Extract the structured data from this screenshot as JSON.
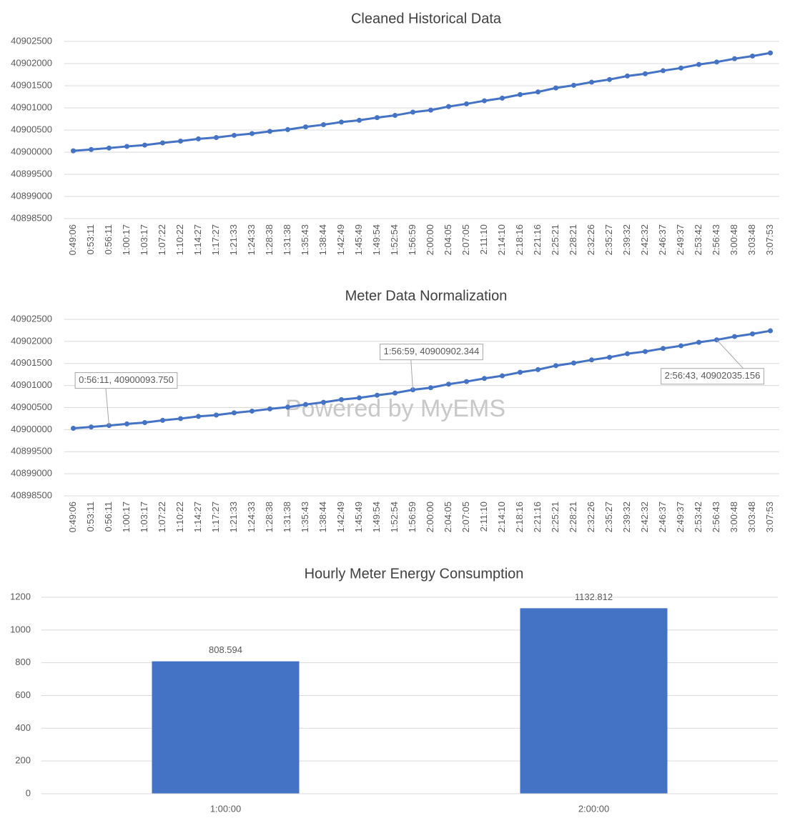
{
  "chart_data": [
    {
      "type": "line",
      "title": "Cleaned Historical Data",
      "categories": [
        "0:49:06",
        "0:53:11",
        "0:56:11",
        "1:00:17",
        "1:03:17",
        "1:07:22",
        "1:10:22",
        "1:14:27",
        "1:17:27",
        "1:21:33",
        "1:24:33",
        "1:28:38",
        "1:31:38",
        "1:35:43",
        "1:38:44",
        "1:42:49",
        "1:45:49",
        "1:49:54",
        "1:52:54",
        "1:56:59",
        "2:00:00",
        "2:04:05",
        "2:07:05",
        "2:11:10",
        "2:14:10",
        "2:18:16",
        "2:21:16",
        "2:25:21",
        "2:28:21",
        "2:32:26",
        "2:35:27",
        "2:39:32",
        "2:42:32",
        "2:46:37",
        "2:49:37",
        "2:53:42",
        "2:56:43",
        "3:00:48",
        "3:03:48",
        "3:07:53"
      ],
      "values": [
        40900030,
        40900060,
        40900093.75,
        40900130,
        40900160,
        40900210,
        40900250,
        40900300,
        40900330,
        40900380,
        40900420,
        40900470,
        40900510,
        40900570,
        40900620,
        40900680,
        40900720,
        40900780,
        40900830,
        40900902.344,
        40900950,
        40901030,
        40901090,
        40901160,
        40901220,
        40901300,
        40901360,
        40901450,
        40901510,
        40901580,
        40901640,
        40901720,
        40901770,
        40901840,
        40901900,
        40901980,
        40902035.156,
        40902110,
        40902170,
        40902240
      ],
      "color": "#4472c4",
      "ylim": [
        40898500,
        40902500
      ],
      "yticks": [
        40898500,
        40899000,
        40899500,
        40900000,
        40900500,
        40901000,
        40901500,
        40902000,
        40902500
      ],
      "grid": true
    },
    {
      "type": "line",
      "title": "Meter Data Normalization",
      "categories": [
        "0:49:06",
        "0:53:11",
        "0:56:11",
        "1:00:17",
        "1:03:17",
        "1:07:22",
        "1:10:22",
        "1:14:27",
        "1:17:27",
        "1:21:33",
        "1:24:33",
        "1:28:38",
        "1:31:38",
        "1:35:43",
        "1:38:44",
        "1:42:49",
        "1:45:49",
        "1:49:54",
        "1:52:54",
        "1:56:59",
        "2:00:00",
        "2:04:05",
        "2:07:05",
        "2:11:10",
        "2:14:10",
        "2:18:16",
        "2:21:16",
        "2:25:21",
        "2:28:21",
        "2:32:26",
        "2:35:27",
        "2:39:32",
        "2:42:32",
        "2:46:37",
        "2:49:37",
        "2:53:42",
        "2:56:43",
        "3:00:48",
        "3:03:48",
        "3:07:53"
      ],
      "values": [
        40900030,
        40900060,
        40900093.75,
        40900130,
        40900160,
        40900210,
        40900250,
        40900300,
        40900330,
        40900380,
        40900420,
        40900470,
        40900510,
        40900570,
        40900620,
        40900680,
        40900720,
        40900780,
        40900830,
        40900902.344,
        40900950,
        40901030,
        40901090,
        40901160,
        40901220,
        40901300,
        40901360,
        40901450,
        40901510,
        40901580,
        40901640,
        40901720,
        40901770,
        40901840,
        40901900,
        40901980,
        40902035.156,
        40902110,
        40902170,
        40902240
      ],
      "color": "#4472c4",
      "ylim": [
        40898500,
        40902500
      ],
      "yticks": [
        40898500,
        40899000,
        40899500,
        40900000,
        40900500,
        40901000,
        40901500,
        40902000,
        40902500
      ],
      "grid": true,
      "annotations": [
        {
          "x": "0:56:11",
          "y": 40900093.75,
          "label": "0:56:11, 40900093.750"
        },
        {
          "x": "1:56:59",
          "y": 40900902.344,
          "label": "1:56:59, 40900902.344"
        },
        {
          "x": "2:56:43",
          "y": 40902035.156,
          "label": "2:56:43, 40902035.156"
        }
      ],
      "watermark": "Powered by MyEMS"
    },
    {
      "type": "bar",
      "title": "Hourly Meter Energy Consumption",
      "categories": [
        "1:00:00",
        "2:00:00"
      ],
      "values": [
        808.594,
        1132.812
      ],
      "color": "#4472c4",
      "ylim": [
        0,
        1200
      ],
      "yticks": [
        0,
        200,
        400,
        600,
        800,
        1000,
        1200
      ],
      "grid": true
    }
  ]
}
